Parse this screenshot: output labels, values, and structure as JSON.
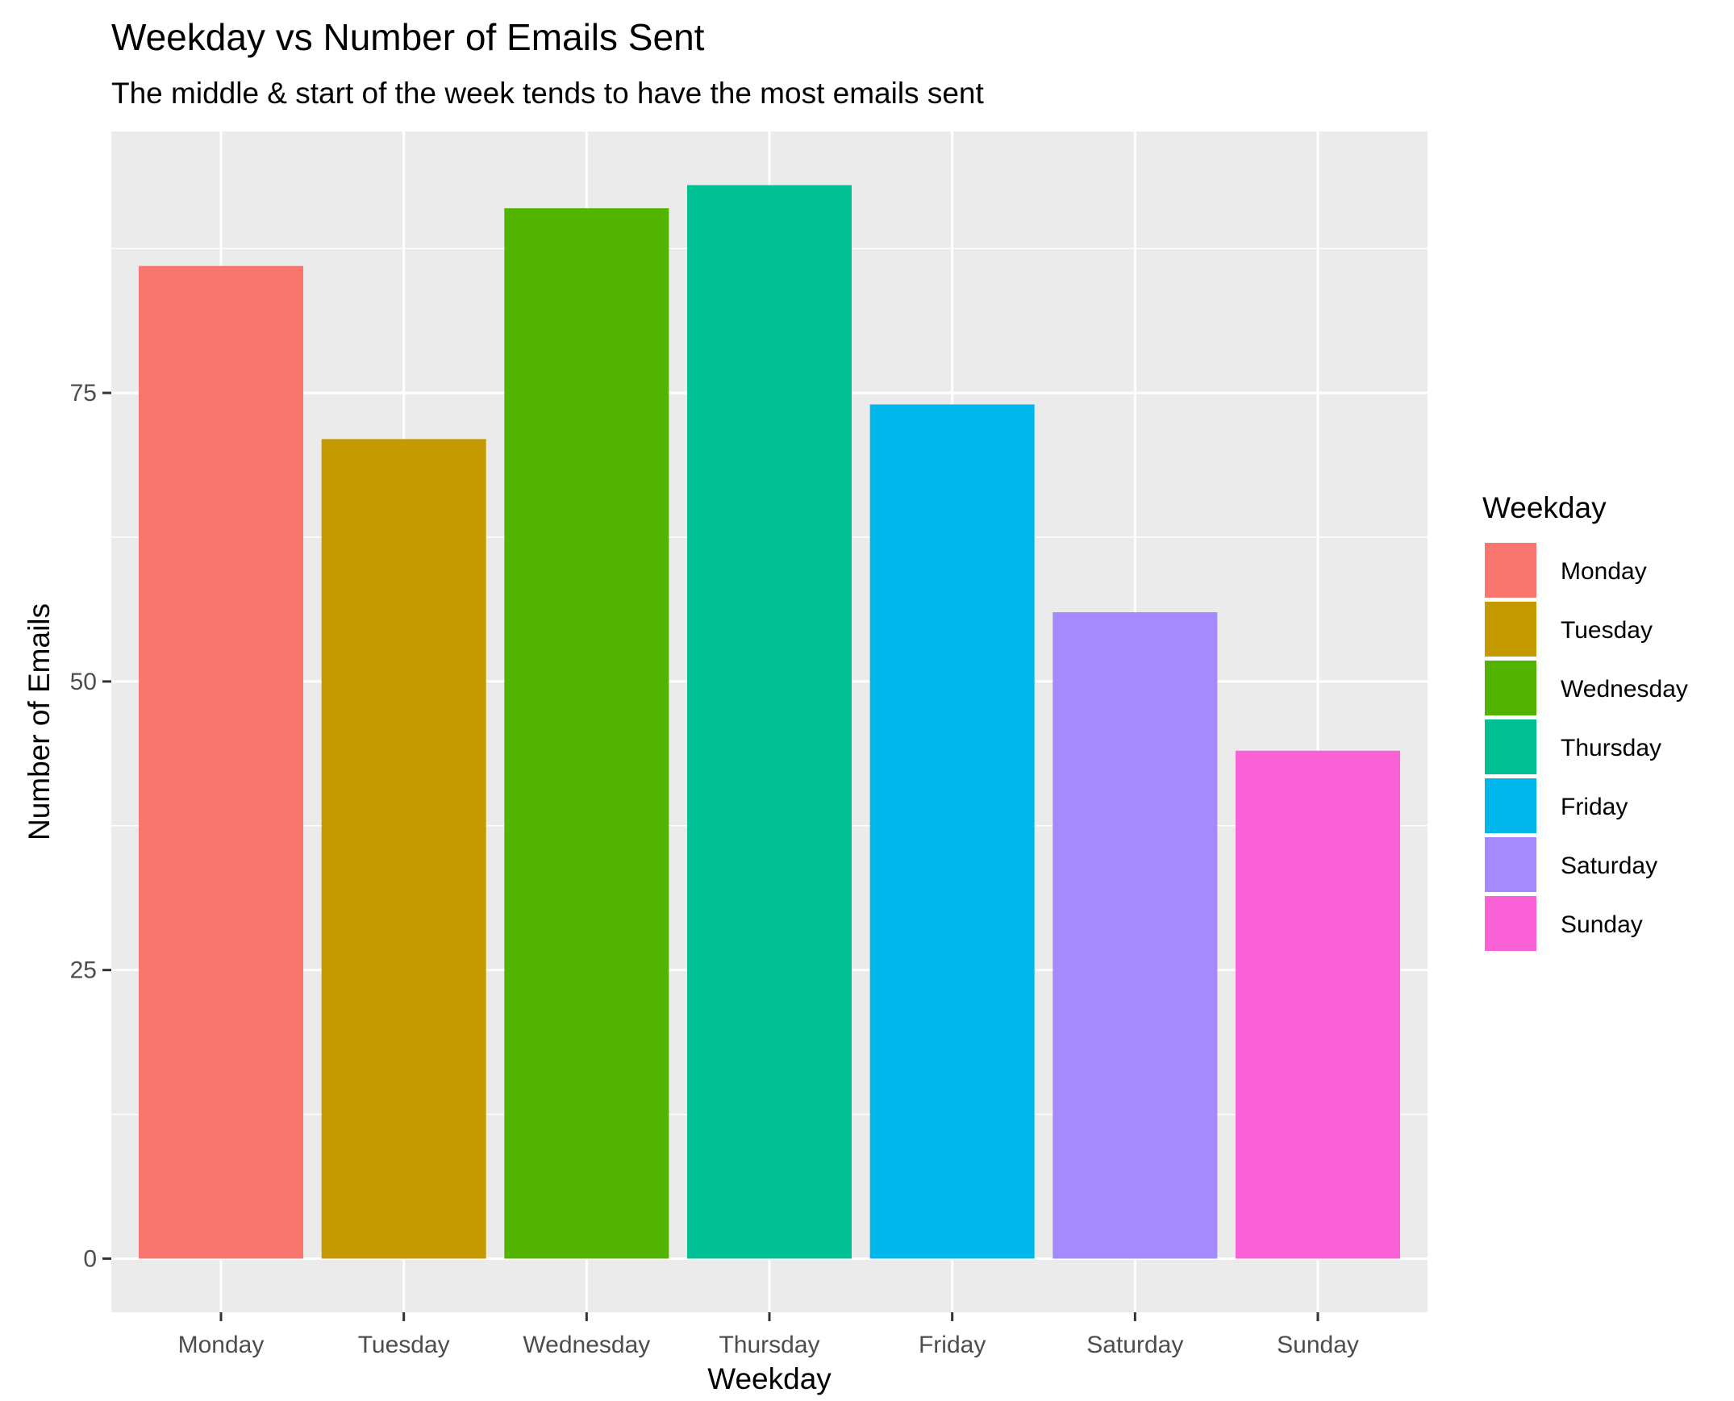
{
  "chart_data": {
    "type": "bar",
    "title": "Weekday vs Number of Emails Sent",
    "subtitle": "The middle & start of the week tends to have the most emails sent",
    "xlabel": "Weekday",
    "ylabel": "Number of Emails",
    "categories": [
      "Monday",
      "Tuesday",
      "Wednesday",
      "Thursday",
      "Friday",
      "Saturday",
      "Sunday"
    ],
    "values": [
      86,
      71,
      91,
      93,
      74,
      56,
      44
    ],
    "colors": [
      "#F8766D",
      "#C49A00",
      "#53B400",
      "#00C094",
      "#00B6EB",
      "#A58AFF",
      "#FB61D7"
    ],
    "ylim": [
      -4.65,
      97.65
    ],
    "yticks": [
      0,
      25,
      50,
      75
    ],
    "grid": true,
    "panel_background": "#EBEBEB",
    "legend": {
      "title": "Weekday",
      "position": "right",
      "entries": [
        "Monday",
        "Tuesday",
        "Wednesday",
        "Thursday",
        "Friday",
        "Saturday",
        "Sunday"
      ]
    }
  }
}
